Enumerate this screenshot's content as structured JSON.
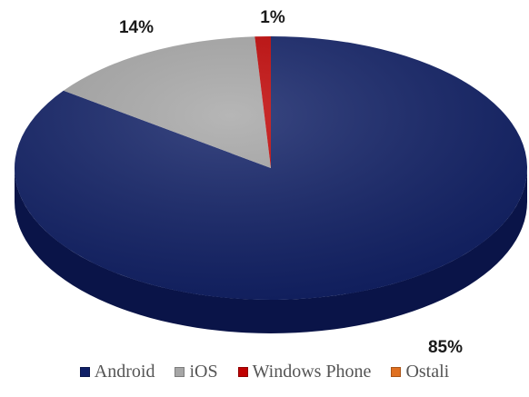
{
  "chart_data": {
    "type": "pie",
    "style": "3d",
    "categories": [
      "Android",
      "iOS",
      "Windows Phone",
      "Ostali"
    ],
    "values": [
      85,
      14,
      1,
      0
    ],
    "data_labels": [
      "85%",
      "14%",
      "1%",
      ""
    ],
    "colors": [
      "#0f1f66",
      "#a6a6a6",
      "#c00000",
      "#e07020"
    ],
    "side_colors": [
      "#0a1448",
      "#7f7f7f",
      "#8a0000",
      "#a04c10"
    ],
    "legend_position": "bottom",
    "start_angle": "top",
    "direction": "clockwise"
  }
}
